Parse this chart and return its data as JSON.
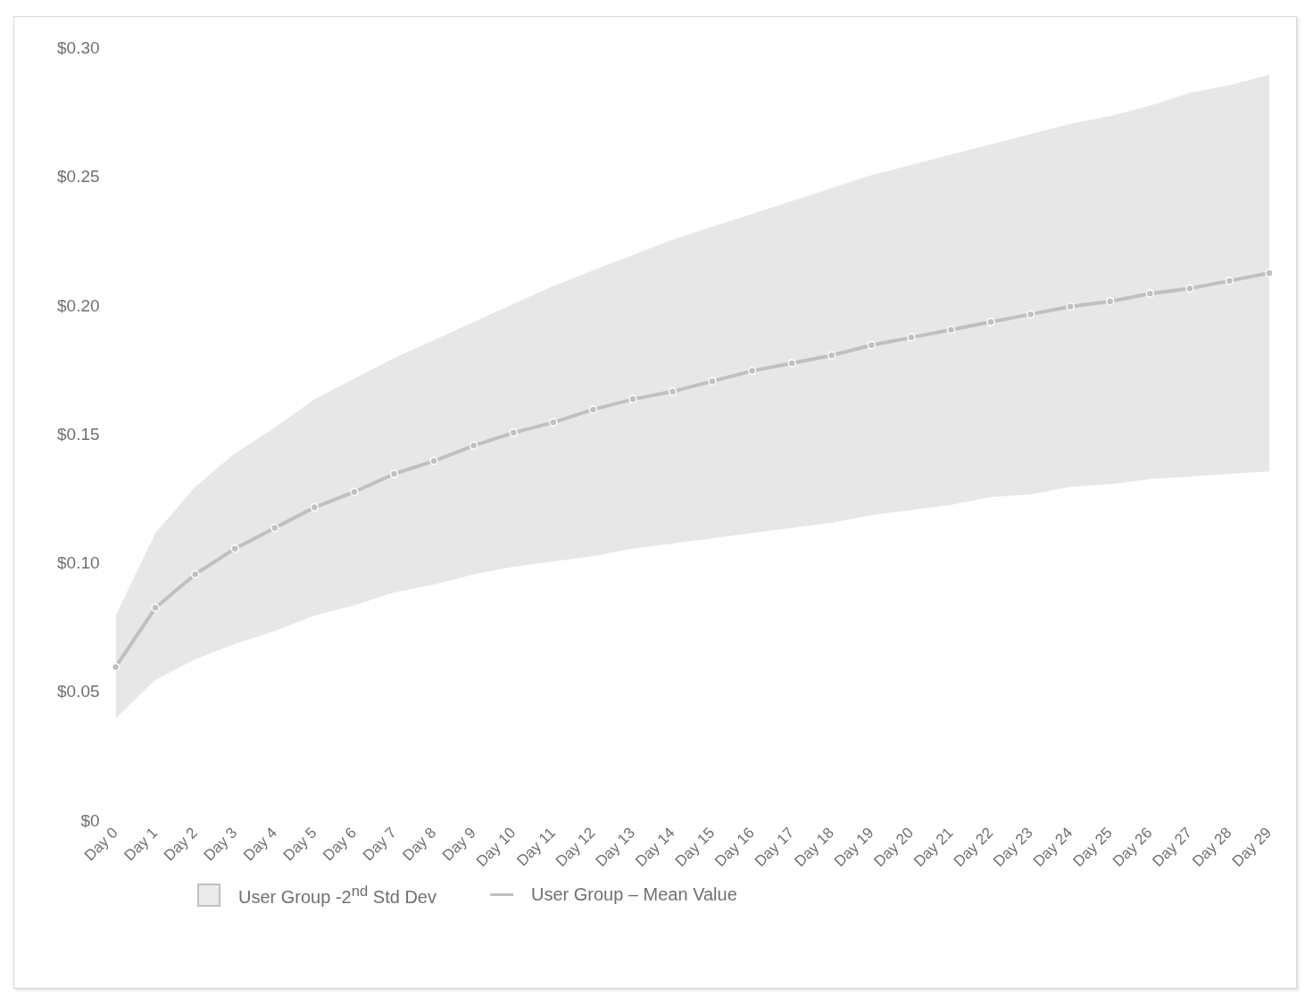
{
  "chart_data": {
    "type": "line",
    "categories": [
      "Day 0",
      "Day 1",
      "Day 2",
      "Day 3",
      "Day 4",
      "Day 5",
      "Day 6",
      "Day 7",
      "Day 8",
      "Day 9",
      "Day 10",
      "Day 11",
      "Day 12",
      "Day 13",
      "Day 14",
      "Day 15",
      "Day 16",
      "Day 17",
      "Day 18",
      "Day 19",
      "Day 20",
      "Day 21",
      "Day 22",
      "Day 23",
      "Day 24",
      "Day 25",
      "Day 26",
      "Day 27",
      "Day 28",
      "Day 29"
    ],
    "series": [
      {
        "name": "User Group – Mean Value",
        "color": "#c0c0c0",
        "values": [
          0.06,
          0.083,
          0.096,
          0.106,
          0.114,
          0.122,
          0.128,
          0.135,
          0.14,
          0.146,
          0.151,
          0.155,
          0.16,
          0.164,
          0.167,
          0.171,
          0.175,
          0.178,
          0.181,
          0.185,
          0.188,
          0.191,
          0.194,
          0.197,
          0.2,
          0.202,
          0.205,
          0.207,
          0.21,
          0.213
        ],
        "lower": [
          0.04,
          0.055,
          0.063,
          0.069,
          0.074,
          0.08,
          0.084,
          0.089,
          0.092,
          0.096,
          0.099,
          0.101,
          0.103,
          0.106,
          0.108,
          0.11,
          0.112,
          0.114,
          0.116,
          0.119,
          0.121,
          0.123,
          0.126,
          0.127,
          0.13,
          0.131,
          0.133,
          0.134,
          0.135,
          0.136
        ],
        "upper": [
          0.08,
          0.112,
          0.13,
          0.143,
          0.153,
          0.164,
          0.172,
          0.18,
          0.187,
          0.194,
          0.201,
          0.208,
          0.214,
          0.22,
          0.226,
          0.231,
          0.236,
          0.241,
          0.246,
          0.251,
          0.255,
          0.259,
          0.263,
          0.267,
          0.271,
          0.274,
          0.278,
          0.283,
          0.286,
          0.29
        ]
      }
    ],
    "annotations": [
      "User Group -2$^{nd}$ Std Dev"
    ],
    "ylim": [
      0,
      0.3
    ],
    "yticks": [
      {
        "value": 0,
        "label": "$0"
      },
      {
        "value": 0.05,
        "label": "$0.05"
      },
      {
        "value": 0.1,
        "label": "$0.10"
      },
      {
        "value": 0.15,
        "label": "$0.15"
      },
      {
        "value": 0.2,
        "label": "$0.20"
      },
      {
        "value": 0.25,
        "label": "$0.25"
      },
      {
        "value": 0.3,
        "label": "$0.30"
      }
    ],
    "grid": false,
    "legend": "bottom",
    "marker": "circle",
    "line_style": "solid"
  }
}
